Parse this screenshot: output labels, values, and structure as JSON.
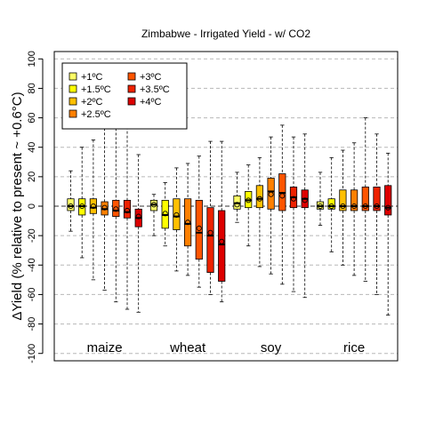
{
  "chart_data": {
    "type": "boxplot",
    "title": "Zimbabwe - Irrigated Yield - w/ CO2",
    "ylabel": "ΔYield (% relative to present ~ +0.6°C)",
    "xlabel": "",
    "ylim": [
      -105,
      105
    ],
    "yticks": [
      -100,
      -80,
      -60,
      -40,
      -20,
      0,
      20,
      40,
      60,
      80,
      100
    ],
    "grid": "horizontal dashed",
    "reference_line": 0,
    "legend_position": "top-left",
    "scenarios": [
      "+1ºC",
      "+1.5ºC",
      "+2ºC",
      "+2.5ºC",
      "+3ºC",
      "+3.5ºC",
      "+4ºC"
    ],
    "colors": [
      "#ffff66",
      "#ffff00",
      "#ffc000",
      "#ff8000",
      "#ff5500",
      "#ee2200",
      "#dd0000"
    ],
    "crops": [
      {
        "name": "maize",
        "boxes": [
          {
            "min": -17,
            "q1": -3,
            "median": 0,
            "q3": 5,
            "max": 24,
            "mean": 0
          },
          {
            "min": -35,
            "q1": -6,
            "median": 0,
            "q3": 5,
            "max": 40,
            "mean": 0
          },
          {
            "min": -50,
            "q1": -5,
            "median": -1,
            "q3": 5,
            "max": 45,
            "mean": 0
          },
          {
            "min": -57,
            "q1": -6,
            "median": -2,
            "q3": 3,
            "max": 62,
            "mean": -1
          },
          {
            "min": -65,
            "q1": -7,
            "median": -3,
            "q3": 4,
            "max": 68,
            "mean": -2
          },
          {
            "min": -70,
            "q1": -8,
            "median": -4,
            "q3": 4,
            "max": 60,
            "mean": -3
          },
          {
            "min": -72,
            "q1": -14,
            "median": -8,
            "q3": -2,
            "max": 35,
            "mean": -7
          }
        ]
      },
      {
        "name": "wheat",
        "boxes": [
          {
            "min": -20,
            "q1": -3,
            "median": 1,
            "q3": 4,
            "max": 8,
            "mean": 1
          },
          {
            "min": -27,
            "q1": -15,
            "median": -6,
            "q3": 4,
            "max": 16,
            "mean": -5
          },
          {
            "min": -44,
            "q1": -16,
            "median": -7,
            "q3": 5,
            "max": 26,
            "mean": -6
          },
          {
            "min": -47,
            "q1": -27,
            "median": -12,
            "q3": 5,
            "max": 29,
            "mean": -11
          },
          {
            "min": -55,
            "q1": -36,
            "median": -18,
            "q3": 4,
            "max": 34,
            "mean": -15
          },
          {
            "min": -60,
            "q1": -45,
            "median": -20,
            "q3": -1,
            "max": 44,
            "mean": -18
          },
          {
            "min": -65,
            "q1": -51,
            "median": -26,
            "q3": -3,
            "max": 44,
            "mean": -24
          }
        ]
      },
      {
        "name": "soy",
        "boxes": [
          {
            "min": -11,
            "q1": -2,
            "median": 2,
            "q3": 7,
            "max": 23,
            "mean": 1
          },
          {
            "min": -27,
            "q1": -1,
            "median": 4,
            "q3": 10,
            "max": 28,
            "mean": 4
          },
          {
            "min": -41,
            "q1": -1,
            "median": 5,
            "q3": 14,
            "max": 33,
            "mean": 5
          },
          {
            "min": -46,
            "q1": -2,
            "median": 10,
            "q3": 19,
            "max": 47,
            "mean": 8
          },
          {
            "min": -53,
            "q1": -3,
            "median": 9,
            "q3": 22,
            "max": 55,
            "mean": 7
          },
          {
            "min": -58,
            "q1": -1,
            "median": 6,
            "q3": 13,
            "max": 47,
            "mean": 5
          },
          {
            "min": -62,
            "q1": -1,
            "median": 5,
            "q3": 11,
            "max": 49,
            "mean": 4
          }
        ]
      },
      {
        "name": "rice",
        "boxes": [
          {
            "min": -13,
            "q1": -2,
            "median": 0,
            "q3": 3,
            "max": 23,
            "mean": 0
          },
          {
            "min": -31,
            "q1": -2,
            "median": 0,
            "q3": 5,
            "max": 33,
            "mean": 0
          },
          {
            "min": -40,
            "q1": -3,
            "median": 0,
            "q3": 11,
            "max": 38,
            "mean": 0
          },
          {
            "min": -47,
            "q1": -3,
            "median": 0,
            "q3": 11,
            "max": 43,
            "mean": 0
          },
          {
            "min": -51,
            "q1": -3,
            "median": 0,
            "q3": 13,
            "max": 60,
            "mean": 0
          },
          {
            "min": -60,
            "q1": -3,
            "median": 0,
            "q3": 13,
            "max": 49,
            "mean": 0
          },
          {
            "min": -74,
            "q1": -6,
            "median": -1,
            "q3": 14,
            "max": 36,
            "mean": -1
          }
        ]
      }
    ]
  }
}
